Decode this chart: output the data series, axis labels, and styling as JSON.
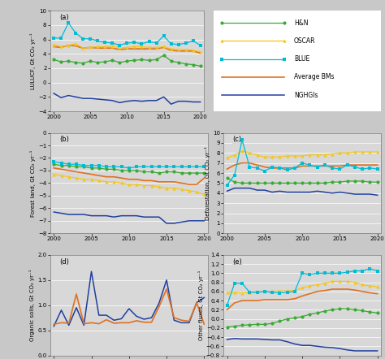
{
  "years": [
    2000,
    2001,
    2002,
    2003,
    2004,
    2005,
    2006,
    2007,
    2008,
    2009,
    2010,
    2011,
    2012,
    2013,
    2014,
    2015,
    2016,
    2017,
    2018,
    2019,
    2020
  ],
  "panel_a": {
    "title": "(a)",
    "ylabel": "LULUCF, Gt CO₂ yr⁻¹",
    "ylim": [
      -4,
      10
    ],
    "yticks": [
      -4,
      -2,
      0,
      2,
      4,
      6,
      8,
      10
    ],
    "HN": [
      3.2,
      2.9,
      3.0,
      2.8,
      2.7,
      3.0,
      2.8,
      2.9,
      3.1,
      2.8,
      3.0,
      3.1,
      3.2,
      3.1,
      3.2,
      3.8,
      3.0,
      2.8,
      2.6,
      2.5,
      2.3
    ],
    "OSCAR": [
      5.3,
      5.0,
      5.2,
      5.4,
      4.8,
      4.9,
      5.0,
      5.0,
      5.1,
      4.8,
      4.9,
      5.0,
      5.0,
      4.9,
      4.9,
      5.0,
      4.7,
      4.6,
      4.6,
      4.5,
      4.3
    ],
    "BLUE": [
      6.2,
      6.2,
      8.3,
      6.9,
      6.1,
      6.1,
      5.8,
      5.6,
      5.5,
      5.2,
      5.5,
      5.6,
      5.4,
      5.7,
      5.5,
      6.5,
      5.4,
      5.3,
      5.5,
      5.8,
      5.2
    ],
    "AvgBMs": [
      5.0,
      4.9,
      5.2,
      5.1,
      4.8,
      4.9,
      4.8,
      4.8,
      4.8,
      4.6,
      4.7,
      4.7,
      4.7,
      4.7,
      4.7,
      4.9,
      4.5,
      4.4,
      4.4,
      4.4,
      4.1
    ],
    "NGHGIs": [
      -1.5,
      -2.1,
      -1.8,
      -2.0,
      -2.2,
      -2.2,
      -2.3,
      -2.4,
      -2.5,
      -2.8,
      -2.6,
      -2.5,
      -2.6,
      -2.5,
      -2.5,
      -2.0,
      -3.0,
      -2.6,
      -2.6,
      -2.7,
      -2.7
    ]
  },
  "panel_b": {
    "title": "(b)",
    "ylabel": "Forest land, Gt CO₂ yr⁻¹",
    "ylim": [
      -8,
      0
    ],
    "yticks": [
      -8,
      -7,
      -6,
      -5,
      -4,
      -3,
      -2,
      -1,
      0
    ],
    "HN": [
      -2.5,
      -2.6,
      -2.6,
      -2.7,
      -2.7,
      -2.8,
      -2.8,
      -2.9,
      -2.9,
      -3.0,
      -3.0,
      -3.0,
      -3.1,
      -3.1,
      -3.2,
      -3.1,
      -3.1,
      -3.2,
      -3.2,
      -3.2,
      -3.2
    ],
    "OSCAR": [
      -3.3,
      -3.4,
      -3.5,
      -3.6,
      -3.7,
      -3.7,
      -3.8,
      -3.9,
      -3.9,
      -4.0,
      -4.1,
      -4.1,
      -4.2,
      -4.2,
      -4.3,
      -4.4,
      -4.4,
      -4.5,
      -4.6,
      -4.7,
      -4.9
    ],
    "BLUE": [
      -2.3,
      -2.4,
      -2.5,
      -2.5,
      -2.6,
      -2.6,
      -2.6,
      -2.7,
      -2.7,
      -2.7,
      -2.8,
      -2.7,
      -2.7,
      -2.7,
      -2.7,
      -2.7,
      -2.7,
      -2.7,
      -2.7,
      -2.7,
      -2.7
    ],
    "AvgBMs": [
      -2.8,
      -2.9,
      -3.0,
      -3.1,
      -3.2,
      -3.3,
      -3.4,
      -3.5,
      -3.5,
      -3.6,
      -3.7,
      -3.7,
      -3.8,
      -3.8,
      -3.9,
      -3.9,
      -3.9,
      -4.0,
      -4.1,
      -4.1,
      -3.6
    ],
    "NGHGIs": [
      -6.3,
      -6.4,
      -6.5,
      -6.5,
      -6.5,
      -6.6,
      -6.6,
      -6.6,
      -6.7,
      -6.6,
      -6.6,
      -6.6,
      -6.7,
      -6.7,
      -6.7,
      -7.2,
      -7.2,
      -7.1,
      -7.0,
      -7.0,
      -7.0
    ]
  },
  "panel_c": {
    "title": "(c)",
    "ylabel": "Deforestation, Gt CO₂ yr⁻¹",
    "ylim": [
      0,
      10
    ],
    "yticks": [
      0,
      1,
      2,
      3,
      4,
      5,
      6,
      7,
      8,
      9,
      10
    ],
    "HN": [
      5.5,
      5.1,
      5.0,
      5.0,
      5.0,
      5.0,
      5.0,
      5.0,
      5.0,
      5.0,
      5.0,
      5.0,
      5.0,
      5.0,
      5.1,
      5.1,
      5.2,
      5.2,
      5.2,
      5.1,
      5.1
    ],
    "OSCAR": [
      7.5,
      7.8,
      8.2,
      8.0,
      7.8,
      7.6,
      7.6,
      7.6,
      7.7,
      7.7,
      7.7,
      7.8,
      7.8,
      7.8,
      7.9,
      8.0,
      8.0,
      8.1,
      8.1,
      8.1,
      8.1
    ],
    "BLUE": [
      4.8,
      5.8,
      9.3,
      6.6,
      6.5,
      6.2,
      6.6,
      6.5,
      6.3,
      6.5,
      7.0,
      6.8,
      6.6,
      6.8,
      6.5,
      6.4,
      6.8,
      6.6,
      6.4,
      6.5,
      6.4
    ],
    "AvgBMs": [
      6.4,
      6.8,
      7.0,
      7.0,
      6.8,
      6.6,
      6.5,
      6.5,
      6.5,
      6.5,
      6.7,
      6.7,
      6.7,
      6.7,
      6.7,
      6.7,
      6.8,
      6.8,
      6.8,
      6.8,
      6.8
    ],
    "NGHGIs": [
      4.2,
      4.5,
      4.5,
      4.5,
      4.3,
      4.3,
      4.1,
      4.2,
      4.1,
      4.1,
      4.1,
      4.1,
      4.2,
      4.1,
      4.0,
      4.1,
      4.0,
      3.9,
      3.9,
      3.9,
      3.8
    ]
  },
  "panel_d": {
    "title": "(d)",
    "ylabel": "Organic soils, Gt CO₂ yr⁻¹",
    "ylim": [
      0.0,
      2.0
    ],
    "yticks": [
      0.0,
      0.5,
      1.0,
      1.5,
      2.0
    ],
    "HN": [
      null,
      null,
      null,
      null,
      null,
      null,
      null,
      null,
      null,
      null,
      null,
      null,
      null,
      null,
      null,
      null,
      null,
      null,
      null,
      null,
      null
    ],
    "OSCAR": [
      null,
      null,
      null,
      null,
      null,
      null,
      null,
      null,
      null,
      null,
      null,
      null,
      null,
      null,
      null,
      null,
      null,
      null,
      null,
      null,
      null
    ],
    "BLUE": [
      null,
      null,
      null,
      null,
      null,
      null,
      null,
      null,
      null,
      null,
      null,
      null,
      null,
      null,
      null,
      null,
      null,
      null,
      null,
      null,
      null
    ],
    "AvgBMs": [
      0.62,
      0.65,
      0.64,
      1.22,
      0.63,
      0.65,
      0.63,
      0.71,
      0.64,
      0.65,
      0.65,
      0.69,
      0.66,
      0.66,
      0.97,
      1.32,
      0.75,
      0.7,
      0.68,
      1.05,
      0.62
    ],
    "NGHGIs": [
      0.58,
      0.9,
      0.6,
      0.95,
      0.6,
      1.67,
      0.8,
      0.8,
      0.7,
      0.73,
      0.93,
      0.78,
      0.72,
      0.75,
      1.04,
      1.5,
      0.7,
      0.65,
      0.65,
      1.05,
      1.15
    ]
  },
  "panel_e": {
    "title": "(e)",
    "ylabel": "Other fluxes, Gt CO₂ yr⁻¹",
    "ylim": [
      -0.8,
      1.4
    ],
    "yticks": [
      -0.8,
      -0.6,
      -0.4,
      -0.2,
      0.0,
      0.2,
      0.4,
      0.6,
      0.8,
      1.0,
      1.2,
      1.4
    ],
    "HN": [
      -0.18,
      -0.16,
      -0.14,
      -0.13,
      -0.12,
      -0.12,
      -0.1,
      -0.05,
      0.0,
      0.02,
      0.05,
      0.1,
      0.13,
      0.17,
      0.2,
      0.22,
      0.22,
      0.2,
      0.18,
      0.15,
      0.13
    ],
    "OSCAR": [
      0.58,
      0.58,
      0.57,
      0.58,
      0.6,
      0.59,
      0.6,
      0.61,
      0.61,
      0.62,
      0.68,
      0.72,
      0.75,
      0.78,
      0.82,
      0.82,
      0.82,
      0.8,
      0.75,
      0.72,
      0.7
    ],
    "BLUE": [
      0.3,
      0.78,
      0.78,
      0.58,
      0.58,
      0.6,
      0.58,
      0.57,
      0.58,
      0.6,
      1.0,
      0.97,
      1.0,
      1.0,
      1.0,
      1.0,
      1.02,
      1.05,
      1.05,
      1.1,
      1.05
    ],
    "AvgBMs": [
      0.2,
      0.35,
      0.4,
      0.4,
      0.4,
      0.42,
      0.42,
      0.42,
      0.42,
      0.44,
      0.5,
      0.55,
      0.6,
      0.62,
      0.65,
      0.65,
      0.65,
      0.63,
      0.6,
      0.57,
      0.55
    ],
    "NGHGIs": [
      -0.45,
      -0.43,
      -0.44,
      -0.44,
      -0.44,
      -0.45,
      -0.46,
      -0.46,
      -0.5,
      -0.55,
      -0.58,
      -0.58,
      -0.6,
      -0.62,
      -0.63,
      -0.65,
      -0.68,
      -0.7,
      -0.7,
      -0.7,
      -0.7
    ]
  },
  "colors": {
    "HN": "#3aaa35",
    "OSCAR": "#f5c518",
    "BLUE": "#00bcd4",
    "AvgBMs": "#e07020",
    "NGHGIs": "#2040a0"
  },
  "fig_bg": "#c8c8c8",
  "panel_bg": "#d8d8d8",
  "legend_bg": "#ffffff"
}
